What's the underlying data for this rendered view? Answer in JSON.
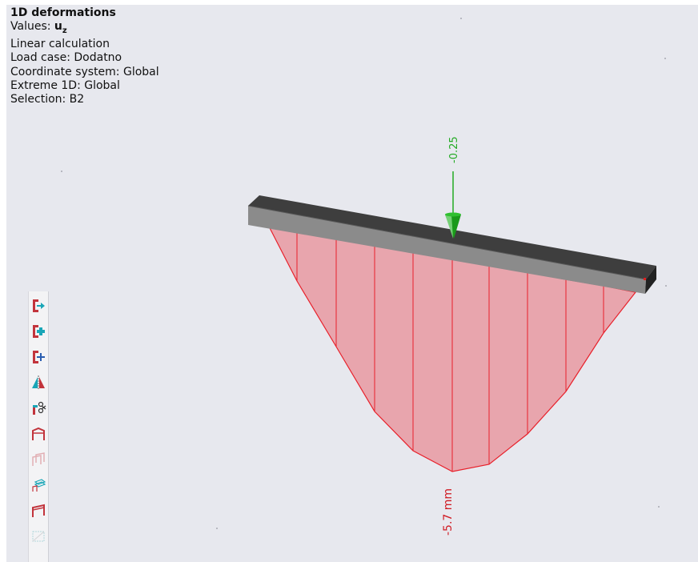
{
  "info": {
    "title": "1D deformations",
    "values_label": "Values: ",
    "values_value": "u",
    "values_sub": "z",
    "calculation": "Linear calculation",
    "load_case": "Load case: Dodatno",
    "coordinate_system": "Coordinate system: Global",
    "extreme": "Extreme 1D: Global",
    "selection": "Selection: B2"
  },
  "load": {
    "value_label": "-0.25",
    "color": "#22aa22"
  },
  "result": {
    "extreme_label": "-5.7 mm",
    "fill_color": "#e8a5ad",
    "line_color": "#e8202a",
    "extreme_value": -5.7,
    "unit": "mm"
  },
  "beam": {
    "top_color": "#3d3d3d",
    "front_color": "#8a8a8a"
  },
  "toolbar": {
    "buttons": [
      {
        "icon": "node-arrow-right-icon",
        "enabled": true
      },
      {
        "icon": "node-add-icon",
        "enabled": true
      },
      {
        "icon": "node-insert-icon",
        "enabled": true
      },
      {
        "icon": "mirror-icon",
        "enabled": true
      },
      {
        "icon": "cut-member-icon",
        "enabled": true
      },
      {
        "icon": "frame-icon",
        "enabled": true
      },
      {
        "icon": "frame-3d-icon",
        "enabled": false
      },
      {
        "icon": "member-layers-icon",
        "enabled": true
      },
      {
        "icon": "frame-red-icon",
        "enabled": true
      },
      {
        "icon": "select-box-icon",
        "enabled": false
      }
    ]
  }
}
